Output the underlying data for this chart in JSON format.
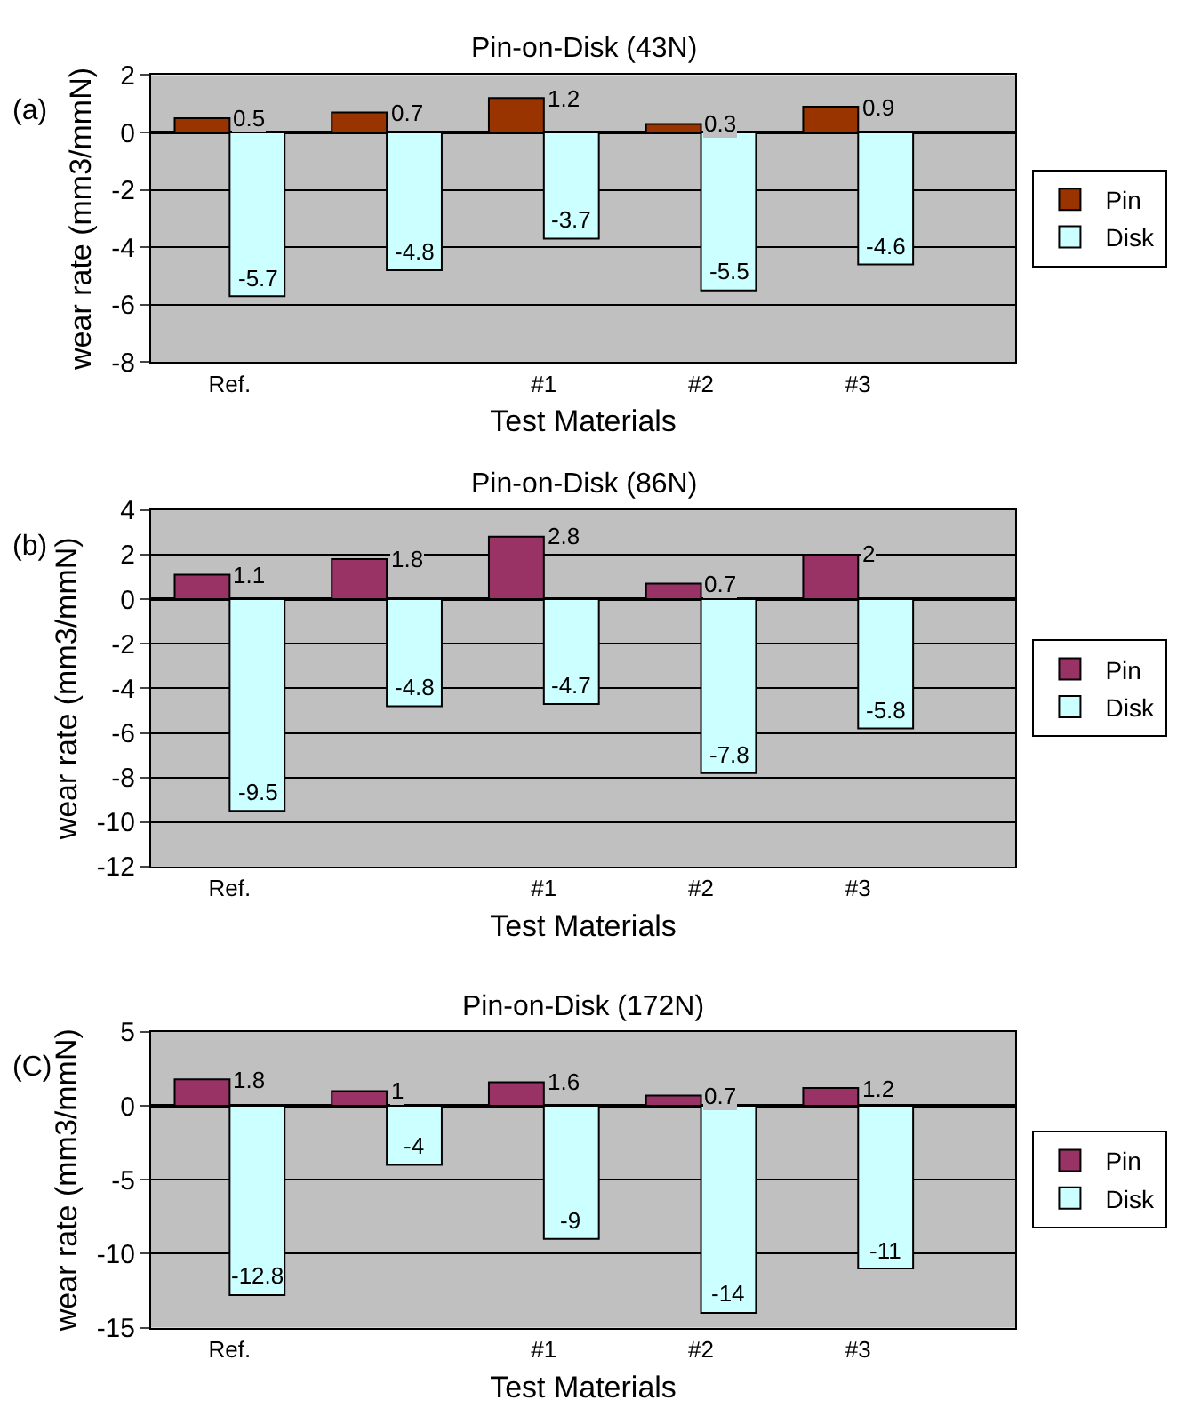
{
  "chart_data": [
    {
      "type": "bar",
      "title": "Pin-on-Disk (43N)",
      "xlabel": "Test Materials",
      "ylabel": "wear rate (mm3/mmN)",
      "annotations": [
        "(a)"
      ],
      "categories": [
        "Ref.",
        null,
        "#1",
        "#2",
        "#3"
      ],
      "series": [
        {
          "name": "Pin",
          "color": "#993300",
          "values": [
            0.5,
            0.7,
            1.2,
            0.3,
            0.9
          ]
        },
        {
          "name": "Disk",
          "color": "#ccffff",
          "values": [
            -5.7,
            -4.8,
            -3.7,
            -5.5,
            -4.6
          ]
        }
      ],
      "ylim": [
        -8,
        2
      ],
      "yticks": [
        -8,
        -6,
        -4,
        -2,
        0,
        2
      ],
      "grid": "y",
      "legend": "right",
      "data_labels": true
    },
    {
      "type": "bar",
      "title": "Pin-on-Disk (86N)",
      "xlabel": "Test Materials",
      "ylabel": "wear rate (mm3/mmN)",
      "annotations": [
        "(b)"
      ],
      "categories": [
        "Ref.",
        null,
        "#1",
        "#2",
        "#3"
      ],
      "series": [
        {
          "name": "Pin",
          "color": "#993366",
          "values": [
            1.1,
            1.8,
            2.8,
            0.7,
            2
          ]
        },
        {
          "name": "Disk",
          "color": "#ccffff",
          "values": [
            -9.5,
            -4.8,
            -4.7,
            -7.8,
            -5.8
          ]
        }
      ],
      "ylim": [
        -12,
        4
      ],
      "yticks": [
        -12,
        -10,
        -8,
        -6,
        -4,
        -2,
        0,
        2,
        4
      ],
      "grid": "y",
      "legend": "right",
      "data_labels": true
    },
    {
      "type": "bar",
      "title": "Pin-on-Disk (172N)",
      "xlabel": "Test Materials",
      "ylabel": "wear rate (mm3/mmN)",
      "annotations": [
        "(C)"
      ],
      "categories": [
        "Ref.",
        null,
        "#1",
        "#2",
        "#3"
      ],
      "series": [
        {
          "name": "Pin",
          "color": "#993366",
          "values": [
            1.8,
            1,
            1.6,
            0.7,
            1.2
          ]
        },
        {
          "name": "Disk",
          "color": "#ccffff",
          "values": [
            -12.8,
            -4,
            -9,
            -14,
            -11
          ]
        }
      ],
      "ylim": [
        -15,
        5
      ],
      "yticks": [
        -15,
        -10,
        -5,
        0,
        5
      ],
      "grid": "y",
      "legend": "right",
      "data_labels": true
    }
  ]
}
